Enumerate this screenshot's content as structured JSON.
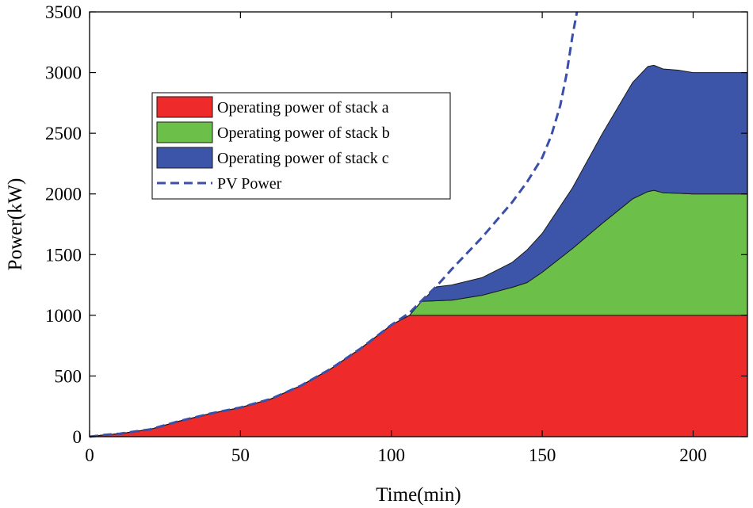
{
  "chart_data": {
    "type": "area",
    "title": "",
    "xlabel": "Time(min)",
    "ylabel": "Power(kW)",
    "xlim": [
      0,
      218
    ],
    "ylim": [
      0,
      3500
    ],
    "xticks": [
      0,
      50,
      100,
      150,
      200
    ],
    "yticks": [
      0,
      500,
      1000,
      1500,
      2000,
      2500,
      3000,
      3500
    ],
    "grid": false,
    "legend_position": "upper-left",
    "stacked": true,
    "x": [
      0,
      5,
      10,
      20,
      30,
      40,
      50,
      60,
      70,
      80,
      90,
      100,
      106,
      110,
      115,
      120,
      130,
      140,
      145,
      150,
      160,
      170,
      180,
      185,
      187,
      190,
      195,
      200,
      210,
      218
    ],
    "series": [
      {
        "name": "Operating power of stack a",
        "color": "#ee2a2a",
        "values": [
          0,
          15,
          25,
          60,
          130,
          190,
          240,
          310,
          420,
          560,
          730,
          920,
          1000,
          1000,
          1000,
          1000,
          1000,
          1000,
          1000,
          1000,
          1000,
          1000,
          1000,
          1000,
          1000,
          1000,
          1000,
          1000,
          1000,
          1000
        ]
      },
      {
        "name": "Operating power of stack b",
        "color": "#6cc04a",
        "values": [
          0,
          0,
          0,
          0,
          0,
          0,
          0,
          0,
          0,
          0,
          0,
          0,
          0,
          115,
          120,
          125,
          165,
          230,
          270,
          355,
          550,
          760,
          960,
          1020,
          1030,
          1010,
          1005,
          1000,
          1000,
          1000
        ]
      },
      {
        "name": "Operating power of stack c",
        "color": "#3d55a8",
        "values": [
          0,
          0,
          0,
          0,
          0,
          0,
          0,
          0,
          0,
          0,
          0,
          0,
          0,
          0,
          115,
          125,
          145,
          205,
          270,
          320,
          500,
          740,
          960,
          1030,
          1030,
          1020,
          1015,
          1000,
          1000,
          1000
        ]
      }
    ],
    "pv_power": {
      "name": "PV Power",
      "color": "#3a4fa8",
      "style": "dashed",
      "x": [
        0,
        5,
        10,
        20,
        30,
        40,
        50,
        60,
        70,
        80,
        90,
        100,
        106,
        110,
        115,
        120,
        130,
        140,
        145,
        150,
        153,
        156,
        158,
        160,
        161.5
      ],
      "values": [
        0,
        15,
        25,
        60,
        130,
        190,
        240,
        310,
        420,
        560,
        730,
        920,
        1020,
        1120,
        1240,
        1380,
        1640,
        1930,
        2100,
        2300,
        2480,
        2730,
        2980,
        3300,
        3500
      ]
    }
  }
}
